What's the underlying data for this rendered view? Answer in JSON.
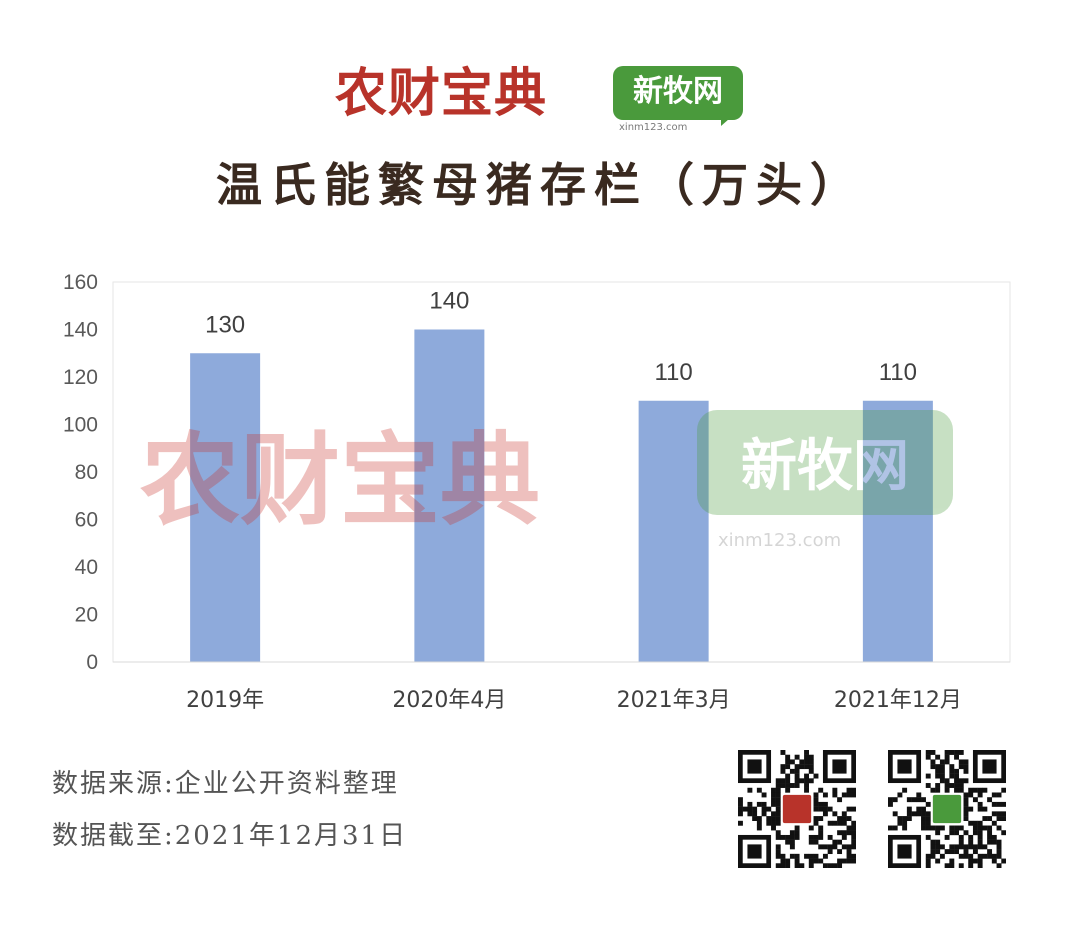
{
  "header": {
    "logo_left": "农财宝典",
    "logo_right": "新牧网",
    "logo_right_url": "xinm123.com",
    "title": "温氏能繁母猪存栏（万头）"
  },
  "watermark": {
    "left_text": "农财宝典",
    "right_text": "新牧网",
    "right_url": "xinm123.com"
  },
  "chart_data": {
    "type": "bar",
    "categories": [
      "2019年",
      "2020年4月",
      "2021年3月",
      "2021年12月"
    ],
    "values": [
      130,
      140,
      110,
      110
    ],
    "data_labels": [
      "130",
      "140",
      "110",
      "110"
    ],
    "ylim": [
      0,
      160
    ],
    "yticks": [
      0,
      20,
      40,
      60,
      80,
      100,
      120,
      140,
      160
    ],
    "bar_color": "#8eaadb",
    "grid": false,
    "legend": "none"
  },
  "footer": {
    "source": "数据来源:企业公开资料整理",
    "cutoff": "数据截至:2021年12月31日"
  },
  "colors": {
    "brand_red": "#b8332a",
    "brand_green": "#4a9a3c",
    "title": "#3a2a20"
  },
  "qr_codes": [
    "qr-code-left",
    "qr-code-right"
  ]
}
